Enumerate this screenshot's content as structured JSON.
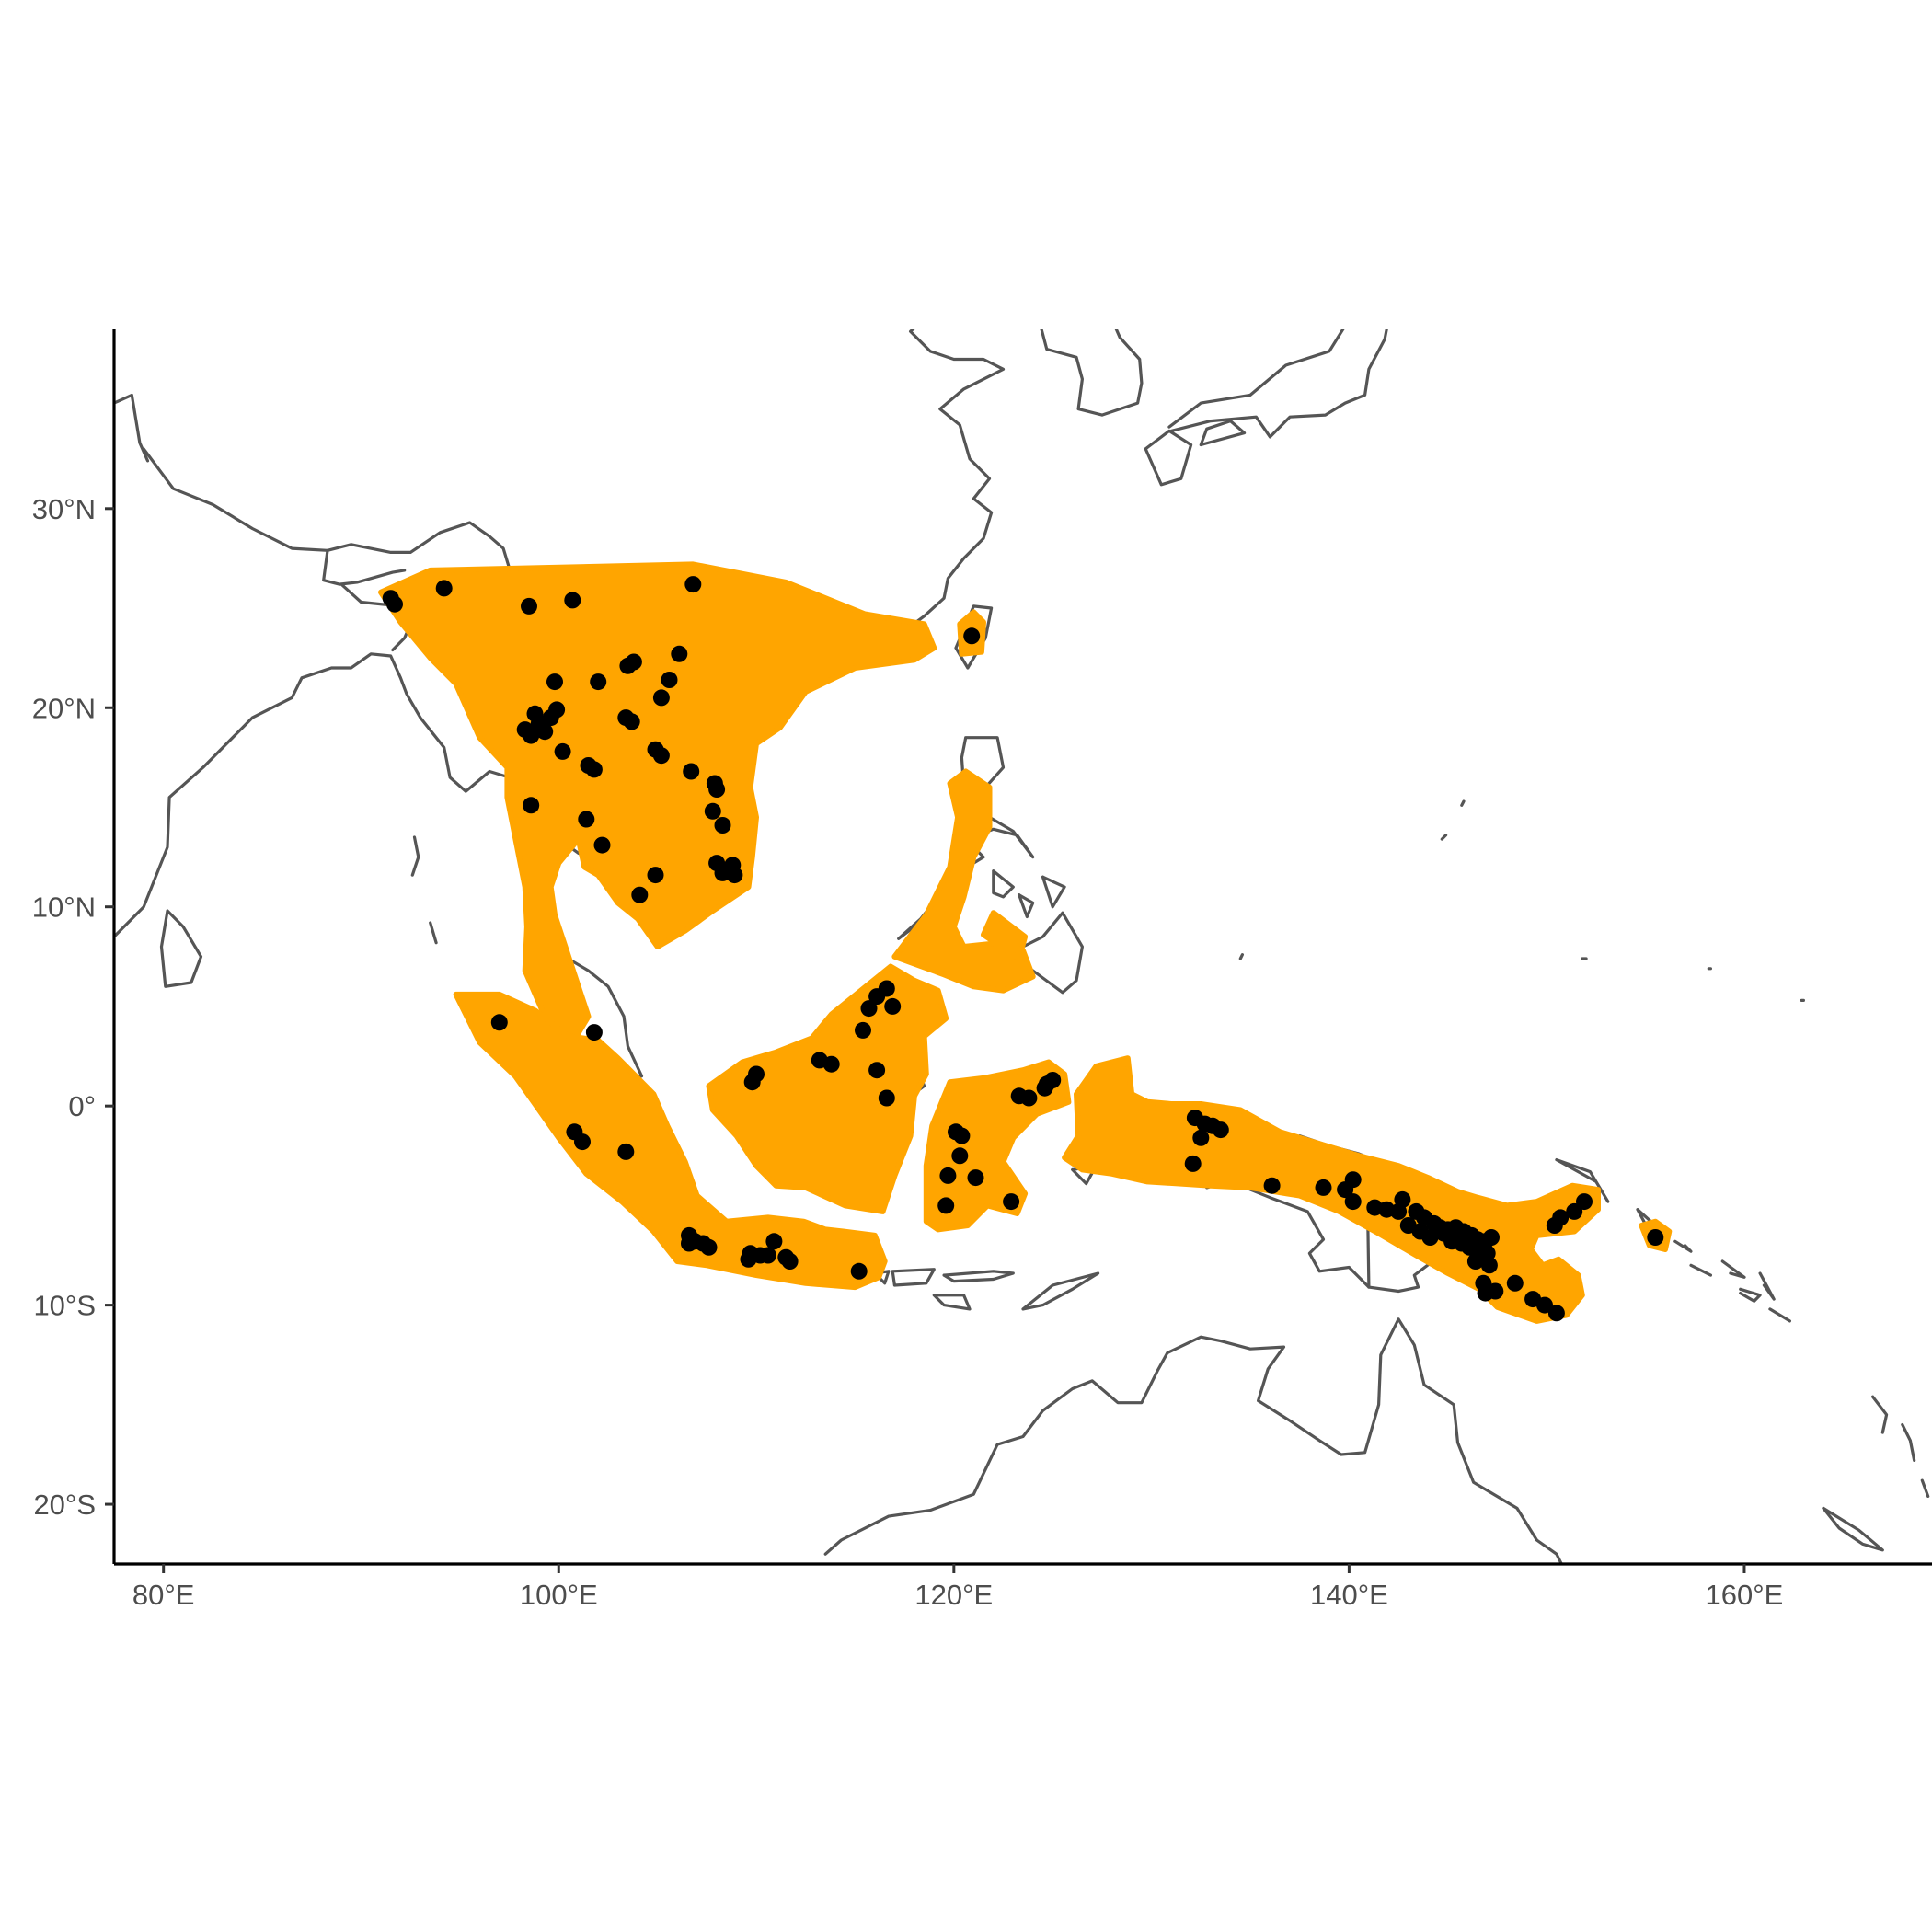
{
  "colors": {
    "range_fill": "#FFA500",
    "range_outline": "#595959",
    "coastline": "#555555",
    "point": "#000000",
    "background": "#FFFFFF"
  },
  "chart_data": {
    "type": "scatter",
    "title": "",
    "xlabel": "",
    "ylabel": "",
    "xlim": [
      77.5,
      169.5
    ],
    "ylim": [
      -23,
      39
    ],
    "x_ticks": [
      {
        "value": 80,
        "label": "80°E"
      },
      {
        "value": 100,
        "label": "100°E"
      },
      {
        "value": 120,
        "label": "120°E"
      },
      {
        "value": 140,
        "label": "140°E"
      },
      {
        "value": 160,
        "label": "160°E"
      }
    ],
    "y_ticks": [
      {
        "value": 30,
        "label": "30°N"
      },
      {
        "value": 20,
        "label": "20°N"
      },
      {
        "value": 10,
        "label": "10°N"
      },
      {
        "value": 0,
        "label": "0°"
      },
      {
        "value": -10,
        "label": "10°S"
      },
      {
        "value": -20,
        "label": "20°S"
      }
    ],
    "grid": false,
    "layers": [
      "coastlines",
      "range polygon",
      "occurrence points"
    ],
    "points": [
      [
        91.5,
        25.5
      ],
      [
        91.7,
        25.2
      ],
      [
        94.2,
        26.0
      ],
      [
        98.5,
        25.1
      ],
      [
        100.7,
        25.4
      ],
      [
        106.8,
        26.2
      ],
      [
        99.8,
        21.3
      ],
      [
        102.0,
        21.3
      ],
      [
        103.5,
        22.1
      ],
      [
        103.8,
        22.3
      ],
      [
        106.1,
        22.7
      ],
      [
        105.6,
        21.4
      ],
      [
        105.2,
        20.5
      ],
      [
        98.3,
        18.9
      ],
      [
        98.6,
        18.6
      ],
      [
        99.0,
        19.2
      ],
      [
        99.3,
        18.8
      ],
      [
        98.8,
        19.7
      ],
      [
        99.9,
        19.9
      ],
      [
        99.6,
        19.5
      ],
      [
        100.2,
        17.8
      ],
      [
        101.5,
        17.1
      ],
      [
        101.8,
        16.9
      ],
      [
        103.4,
        19.5
      ],
      [
        103.7,
        19.3
      ],
      [
        104.9,
        17.9
      ],
      [
        105.2,
        17.6
      ],
      [
        106.7,
        16.8
      ],
      [
        107.9,
        16.2
      ],
      [
        108.0,
        15.9
      ],
      [
        107.8,
        14.8
      ],
      [
        108.3,
        14.1
      ],
      [
        98.6,
        15.1
      ],
      [
        101.4,
        14.4
      ],
      [
        102.2,
        13.1
      ],
      [
        108.0,
        12.2
      ],
      [
        108.3,
        11.7
      ],
      [
        108.8,
        12.1
      ],
      [
        108.9,
        11.6
      ],
      [
        104.9,
        11.6
      ],
      [
        104.1,
        10.6
      ],
      [
        97.0,
        4.2
      ],
      [
        101.8,
        3.7
      ],
      [
        100.8,
        -1.3
      ],
      [
        101.2,
        -1.8
      ],
      [
        103.4,
        -2.3
      ],
      [
        116.1,
        5.5
      ],
      [
        116.6,
        5.9
      ],
      [
        116.9,
        5.0
      ],
      [
        115.7,
        4.9
      ],
      [
        115.4,
        3.8
      ],
      [
        113.2,
        2.3
      ],
      [
        113.8,
        2.1
      ],
      [
        116.1,
        1.8
      ],
      [
        116.6,
        0.4
      ],
      [
        109.8,
        1.2
      ],
      [
        110.0,
        1.6
      ],
      [
        106.6,
        -6.5
      ],
      [
        106.9,
        -6.8
      ],
      [
        107.3,
        -6.9
      ],
      [
        107.6,
        -7.1
      ],
      [
        106.6,
        -6.9
      ],
      [
        109.7,
        -7.4
      ],
      [
        110.2,
        -7.5
      ],
      [
        110.9,
        -6.8
      ],
      [
        110.6,
        -7.5
      ],
      [
        109.6,
        -7.7
      ],
      [
        111.5,
        -7.6
      ],
      [
        111.7,
        -7.8
      ],
      [
        115.2,
        -8.3
      ],
      [
        120.1,
        -1.3
      ],
      [
        120.4,
        -1.5
      ],
      [
        120.3,
        -2.5
      ],
      [
        121.1,
        -3.6
      ],
      [
        119.7,
        -3.5
      ],
      [
        119.6,
        -5.0
      ],
      [
        122.9,
        -4.8
      ],
      [
        123.3,
        0.5
      ],
      [
        123.8,
        0.4
      ],
      [
        124.7,
        1.1
      ],
      [
        125.0,
        1.3
      ],
      [
        124.6,
        0.9
      ],
      [
        132.2,
        -0.6
      ],
      [
        132.7,
        -0.9
      ],
      [
        133.1,
        -1.0
      ],
      [
        133.5,
        -1.2
      ],
      [
        132.5,
        -1.6
      ],
      [
        132.1,
        -2.9
      ],
      [
        136.1,
        -4.0
      ],
      [
        138.7,
        -4.1
      ],
      [
        140.2,
        -3.7
      ],
      [
        139.8,
        -4.2
      ],
      [
        140.2,
        -4.8
      ],
      [
        141.3,
        -5.1
      ],
      [
        141.9,
        -5.2
      ],
      [
        142.5,
        -5.3
      ],
      [
        142.7,
        -4.7
      ],
      [
        143.4,
        -5.3
      ],
      [
        143.8,
        -5.6
      ],
      [
        144.3,
        -5.9
      ],
      [
        144.6,
        -6.1
      ],
      [
        145.0,
        -6.2
      ],
      [
        145.4,
        -6.1
      ],
      [
        145.8,
        -6.3
      ],
      [
        146.2,
        -6.5
      ],
      [
        146.5,
        -6.7
      ],
      [
        146.9,
        -6.8
      ],
      [
        147.2,
        -6.6
      ],
      [
        143.0,
        -6.0
      ],
      [
        143.6,
        -6.3
      ],
      [
        144.1,
        -6.6
      ],
      [
        144.8,
        -6.4
      ],
      [
        145.2,
        -6.8
      ],
      [
        145.7,
        -6.9
      ],
      [
        146.1,
        -7.1
      ],
      [
        146.6,
        -7.2
      ],
      [
        147.0,
        -7.4
      ],
      [
        146.4,
        -7.8
      ],
      [
        147.1,
        -8.0
      ],
      [
        146.8,
        -8.9
      ],
      [
        147.4,
        -9.3
      ],
      [
        146.9,
        -9.4
      ],
      [
        148.4,
        -8.9
      ],
      [
        149.3,
        -9.7
      ],
      [
        149.9,
        -10.0
      ],
      [
        150.5,
        -10.4
      ],
      [
        151.4,
        -5.3
      ],
      [
        151.9,
        -4.8
      ],
      [
        150.7,
        -5.6
      ],
      [
        150.4,
        -6.0
      ],
      [
        155.5,
        -6.6
      ],
      [
        120.9,
        23.6
      ]
    ]
  }
}
